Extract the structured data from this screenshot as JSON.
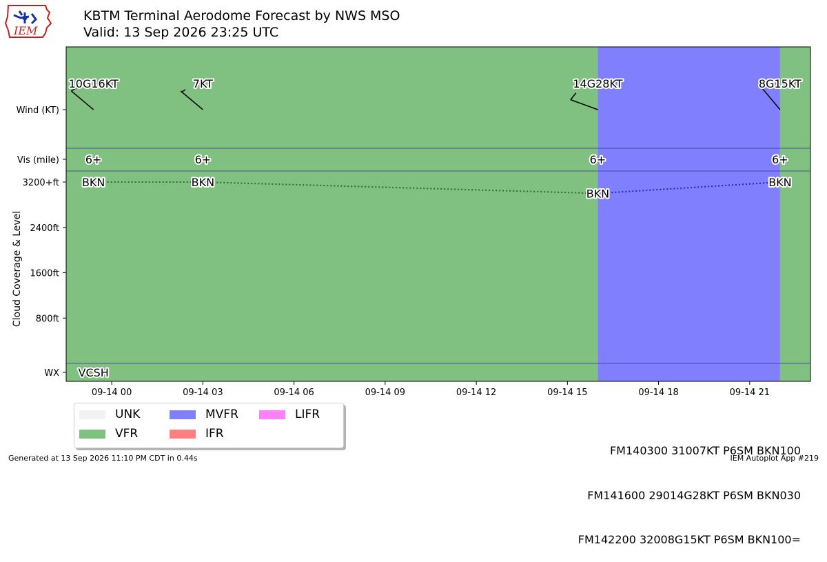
{
  "title": "KBTM Terminal Aerodome Forecast by NWS MSO",
  "subtitle": "Valid: 13 Sep 2026 23:25 UTC",
  "logo_text": "IEM",
  "colors": {
    "UNK": "#f2f2f2",
    "VFR": "#80c080",
    "MVFR": "#8080ff",
    "IFR": "#ff8080",
    "LIFR": "#ff80ff"
  },
  "chart_data": {
    "type": "timeline",
    "row_labels": [
      "Wind (KT)",
      "Vis (mile)",
      "3200+ft",
      "2400ft",
      "1600ft",
      "800ft",
      "WX"
    ],
    "y_axis_label": "Cloud Coverage & Level",
    "x_ticks": [
      "09-14 00",
      "09-14 03",
      "09-14 06",
      "09-14 09",
      "09-14 12",
      "09-14 15",
      "09-14 18",
      "09-14 21"
    ],
    "x_tick_hours": [
      0,
      3,
      6,
      9,
      12,
      15,
      18,
      21
    ],
    "x_range_hours": [
      -1.5,
      23
    ],
    "category_periods": [
      {
        "start": -1.5,
        "end": 16,
        "category": "VFR"
      },
      {
        "start": 16,
        "end": 22,
        "category": "MVFR"
      },
      {
        "start": 22,
        "end": 23,
        "category": "VFR"
      }
    ],
    "forecasts": [
      {
        "time_h": -0.6,
        "wind": "10G16KT",
        "wind_dir": 310,
        "vis": "6+",
        "sky": "BKN",
        "level_ft": 10000,
        "wx": "VCSH"
      },
      {
        "time_h": 3,
        "wind": "7KT",
        "wind_dir": 310,
        "vis": "6+",
        "sky": "BKN",
        "level_ft": 10000,
        "wx": ""
      },
      {
        "time_h": 16,
        "wind": "14G28KT",
        "wind_dir": 290,
        "vis": "6+",
        "sky": "BKN",
        "level_ft": 3000,
        "wx": ""
      },
      {
        "time_h": 22,
        "wind": "8G15KT",
        "wind_dir": 320,
        "vis": "6+",
        "sky": "BKN",
        "level_ft": 10000,
        "wx": ""
      }
    ]
  },
  "legend": [
    {
      "label": "UNK",
      "color": "#f2f2f2"
    },
    {
      "label": "MVFR",
      "color": "#8080ff"
    },
    {
      "label": "LIFR",
      "color": "#ff80ff"
    },
    {
      "label": "VFR",
      "color": "#80c080"
    },
    {
      "label": "IFR",
      "color": "#ff8080"
    }
  ],
  "taf_lines": [
    "FM140300 31007KT P6SM BKN100",
    "FM141600 29014G28KT P6SM BKN030",
    "FM142200 32008G15KT P6SM BKN100="
  ],
  "footer_left": "Generated at 13 Sep 2026 11:10 PM CDT in 0.44s",
  "footer_right": "IEM Autoplot App #219"
}
